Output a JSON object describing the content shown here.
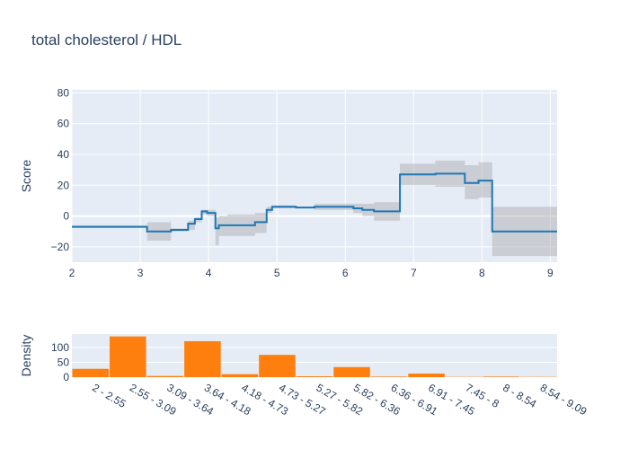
{
  "chart_data": [
    {
      "type": "line",
      "title": "total cholesterol / HDL",
      "xlabel": "",
      "ylabel": "Score",
      "xlim": [
        2,
        9.1
      ],
      "ylim": [
        -30,
        82
      ],
      "x_ticks": [
        2,
        3,
        4,
        5,
        6,
        7,
        8,
        9
      ],
      "y_ticks": [
        -20,
        0,
        20,
        40,
        60,
        80
      ],
      "grid": true,
      "line_color": "#1f77b4",
      "band_color": "#a9a9a9",
      "series": [
        {
          "x": [
            2.0,
            3.1,
            3.45,
            3.7,
            3.8,
            3.9,
            3.98,
            4.1,
            4.15,
            4.28,
            4.68,
            4.85,
            4.93,
            5.0,
            5.28,
            5.55,
            5.85,
            6.12,
            6.25,
            6.42,
            6.8,
            7.32,
            7.75,
            7.95,
            8.15,
            9.1
          ],
          "y": [
            -7,
            -10,
            -9,
            -5,
            -2,
            3,
            2,
            -8,
            -6,
            -6,
            -4,
            4,
            6,
            6,
            5.5,
            6,
            6,
            5,
            4,
            3,
            27,
            27.5,
            21.5,
            23,
            -10,
            -10
          ],
          "lower": [
            -7,
            -16,
            -10,
            -9,
            -4,
            1,
            0,
            -19,
            -13,
            -13,
            -11,
            2,
            5,
            5,
            5,
            4,
            4,
            2,
            0,
            -3,
            20,
            19,
            11,
            12,
            -26,
            -26
          ],
          "upper": [
            -6,
            -4,
            -8,
            -3,
            -1,
            4,
            4,
            -1,
            0,
            1,
            2,
            6,
            7,
            7,
            6,
            8,
            8,
            8,
            8,
            9,
            34,
            36,
            33,
            35,
            6,
            6
          ]
        }
      ]
    },
    {
      "type": "bar",
      "xlabel": "",
      "ylabel": "Density",
      "ylim": [
        0,
        145
      ],
      "y_ticks": [
        0,
        50,
        100
      ],
      "bar_color": "#ff7f0e",
      "categories": [
        "2 - 2.55",
        "2.55 - 3.09",
        "3.09 - 3.64",
        "3.64 - 4.18",
        "4.18 - 4.73",
        "4.73 - 5.27",
        "5.27 - 5.82",
        "5.82 - 6.36",
        "6.36 - 6.91",
        "6.91 - 7.45",
        "7.45 - 8",
        "8 - 8.54",
        "8.54 - 9.09"
      ],
      "values": [
        28,
        137,
        4,
        121,
        10,
        75,
        3,
        34,
        2,
        12,
        1,
        2,
        1
      ]
    }
  ]
}
